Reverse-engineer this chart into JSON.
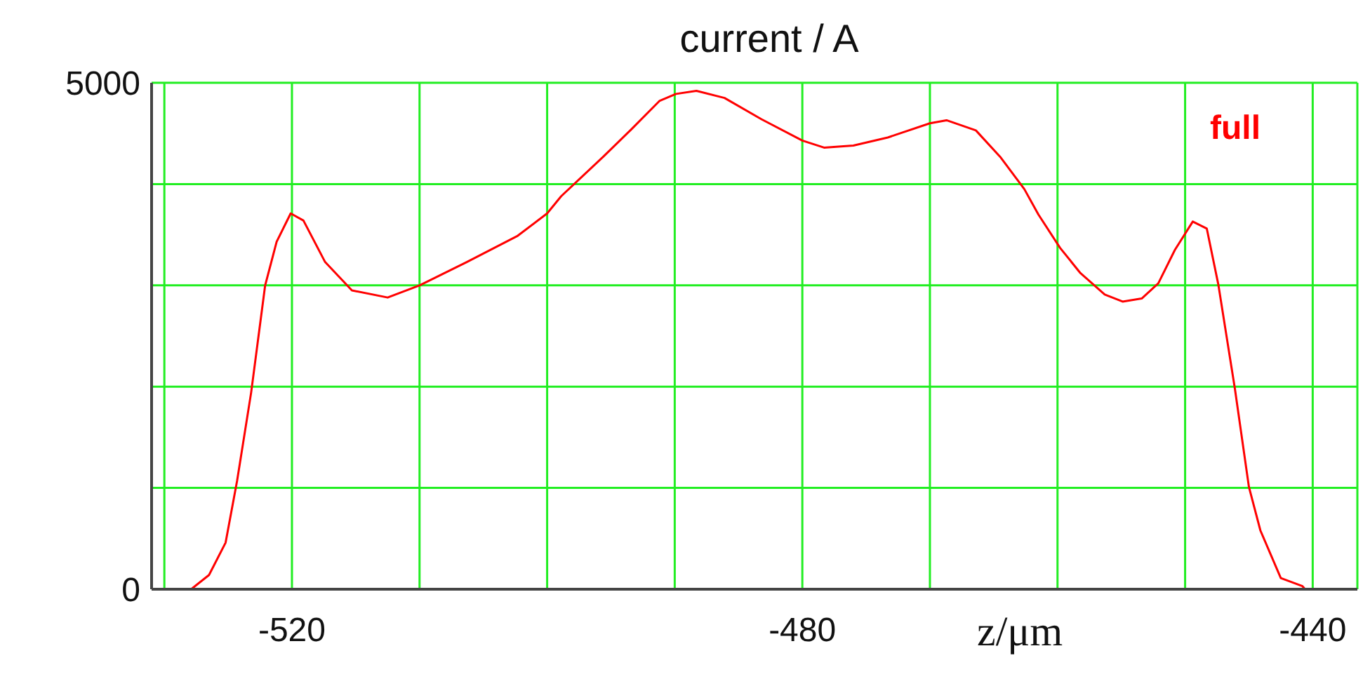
{
  "chart_data": {
    "type": "line",
    "title": "current / A",
    "xlabel": "z/μm",
    "annotations": [
      "full"
    ],
    "x": [
      -531,
      -527.9,
      -526.5,
      -525.2,
      -524.3,
      -523.2,
      -522.1,
      -521.2,
      -520.1,
      -519.1,
      -517.4,
      -515.3,
      -512.5,
      -510,
      -506.3,
      -502.3,
      -500,
      -498.9,
      -495.6,
      -493.4,
      -491.2,
      -489.9,
      -488.3,
      -486.1,
      -483.2,
      -480,
      -478.3,
      -476,
      -473.3,
      -470,
      -468.7,
      -466.4,
      -464.5,
      -462.6,
      -461.5,
      -459.8,
      -458.2,
      -456.3,
      -454.9,
      -453.4,
      -452.1,
      -450.8,
      -449.4,
      -448.3,
      -447.4,
      -446.1,
      -445,
      -444.1,
      -442.5,
      -440.8,
      -440.6,
      -436.5
    ],
    "series": [
      {
        "color": "#ff0000",
        "values": [
          0,
          0,
          140,
          460,
          1070,
          1940,
          3000,
          3430,
          3710,
          3640,
          3230,
          2950,
          2880,
          3000,
          3230,
          3490,
          3710,
          3880,
          4270,
          4540,
          4820,
          4890,
          4920,
          4850,
          4640,
          4430,
          4360,
          4380,
          4460,
          4600,
          4630,
          4530,
          4270,
          3950,
          3700,
          3370,
          3120,
          2910,
          2840,
          2870,
          3020,
          3350,
          3630,
          3560,
          3010,
          1980,
          1010,
          580,
          110,
          30,
          0,
          0
        ]
      }
    ],
    "xlim": [
      -531,
      -436.5
    ],
    "ylim": [
      0,
      5000
    ],
    "xticks": [
      {
        "value": -530,
        "label": null
      },
      -520,
      {
        "value": -510,
        "label": null
      },
      {
        "value": -500,
        "label": null
      },
      {
        "value": -490,
        "label": null
      },
      -480,
      {
        "value": -470,
        "label": null
      },
      {
        "value": -460,
        "label": null
      },
      {
        "value": -450,
        "label": null
      },
      -440
    ],
    "yticks": [
      0,
      {
        "value": 1000,
        "label": null
      },
      {
        "value": 2000,
        "label": null
      },
      {
        "value": 3000,
        "label": null
      },
      {
        "value": 4000,
        "label": null
      },
      5000
    ],
    "grid": true
  }
}
